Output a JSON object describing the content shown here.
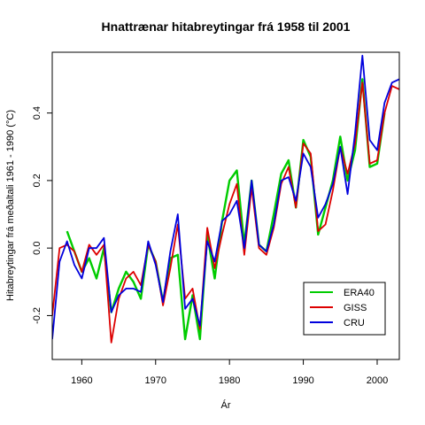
{
  "chart_data": {
    "type": "line",
    "title": "Hnattrænar hitabreytingar frá 1958 til 2001",
    "xlabel": "Ár",
    "ylabel": "Hitabreytingar frá meðaltali 1961 - 1990 (°C)",
    "xlim": [
      1956,
      2003
    ],
    "ylim": [
      -0.33,
      0.58
    ],
    "x_ticks": [
      1960,
      1970,
      1980,
      1990,
      2000
    ],
    "x_tick_labels": [
      "1960",
      "1970",
      "1980",
      "1990",
      "2000"
    ],
    "y_ticks": [
      -0.2,
      0.0,
      0.2,
      0.4
    ],
    "y_tick_labels": [
      "-0.2",
      "0.0",
      "0.2",
      "0.4"
    ],
    "legend_position": "bottom-right",
    "series": [
      {
        "name": "ERA40",
        "color": "#00cc00",
        "x": [
          1958,
          1959,
          1960,
          1961,
          1962,
          1963,
          1964,
          1965,
          1966,
          1967,
          1968,
          1969,
          1970,
          1971,
          1972,
          1973,
          1974,
          1975,
          1976,
          1977,
          1978,
          1979,
          1980,
          1981,
          1982,
          1983,
          1984,
          1985,
          1986,
          1987,
          1988,
          1989,
          1990,
          1991,
          1992,
          1993,
          1994,
          1995,
          1996,
          1997,
          1998,
          1999,
          2000,
          2001
        ],
        "values": [
          0.05,
          -0.01,
          -0.07,
          -0.03,
          -0.09,
          0.0,
          -0.19,
          -0.12,
          -0.07,
          -0.1,
          -0.15,
          0.01,
          -0.04,
          -0.16,
          -0.03,
          -0.02,
          -0.27,
          -0.14,
          -0.27,
          0.04,
          -0.09,
          0.08,
          0.2,
          0.23,
          0.01,
          0.2,
          0.01,
          -0.01,
          0.1,
          0.22,
          0.26,
          0.12,
          0.32,
          0.27,
          0.04,
          0.12,
          0.2,
          0.33,
          0.2,
          0.29,
          0.5,
          0.24,
          0.25,
          0.4
        ]
      },
      {
        "name": "GISS",
        "color": "#dd0000",
        "x": [
          1956,
          1957,
          1958,
          1959,
          1960,
          1961,
          1962,
          1963,
          1964,
          1965,
          1966,
          1967,
          1968,
          1969,
          1970,
          1971,
          1972,
          1973,
          1974,
          1975,
          1976,
          1977,
          1978,
          1979,
          1980,
          1981,
          1982,
          1983,
          1984,
          1985,
          1986,
          1987,
          1988,
          1989,
          1990,
          1991,
          1992,
          1993,
          1994,
          1995,
          1996,
          1997,
          1998,
          1999,
          2000,
          2001,
          2002,
          2003
        ],
        "values": [
          -0.2,
          0.0,
          0.01,
          -0.01,
          -0.07,
          0.01,
          -0.02,
          0.01,
          -0.28,
          -0.15,
          -0.09,
          -0.07,
          -0.11,
          0.01,
          -0.04,
          -0.17,
          -0.06,
          0.07,
          -0.15,
          -0.12,
          -0.24,
          0.06,
          -0.06,
          0.04,
          0.13,
          0.19,
          -0.02,
          0.18,
          0.0,
          -0.02,
          0.06,
          0.19,
          0.24,
          0.12,
          0.31,
          0.28,
          0.05,
          0.07,
          0.17,
          0.3,
          0.22,
          0.31,
          0.49,
          0.25,
          0.26,
          0.4,
          0.48,
          0.47
        ]
      },
      {
        "name": "CRU",
        "color": "#0000dd",
        "x": [
          1956,
          1957,
          1958,
          1959,
          1960,
          1961,
          1962,
          1963,
          1964,
          1965,
          1966,
          1967,
          1968,
          1969,
          1970,
          1971,
          1972,
          1973,
          1974,
          1975,
          1976,
          1977,
          1978,
          1979,
          1980,
          1981,
          1982,
          1983,
          1984,
          1985,
          1986,
          1987,
          1988,
          1989,
          1990,
          1991,
          1992,
          1993,
          1994,
          1995,
          1996,
          1997,
          1998,
          1999,
          2000,
          2001,
          2002,
          2003
        ],
        "values": [
          -0.27,
          -0.04,
          0.02,
          -0.05,
          -0.09,
          0.0,
          0.0,
          0.03,
          -0.19,
          -0.14,
          -0.12,
          -0.12,
          -0.13,
          0.02,
          -0.05,
          -0.16,
          -0.01,
          0.1,
          -0.18,
          -0.15,
          -0.23,
          0.02,
          -0.04,
          0.08,
          0.1,
          0.14,
          0.0,
          0.2,
          0.01,
          -0.01,
          0.07,
          0.2,
          0.21,
          0.14,
          0.28,
          0.24,
          0.09,
          0.13,
          0.19,
          0.3,
          0.16,
          0.34,
          0.57,
          0.32,
          0.29,
          0.43,
          0.49,
          0.5
        ]
      }
    ]
  }
}
